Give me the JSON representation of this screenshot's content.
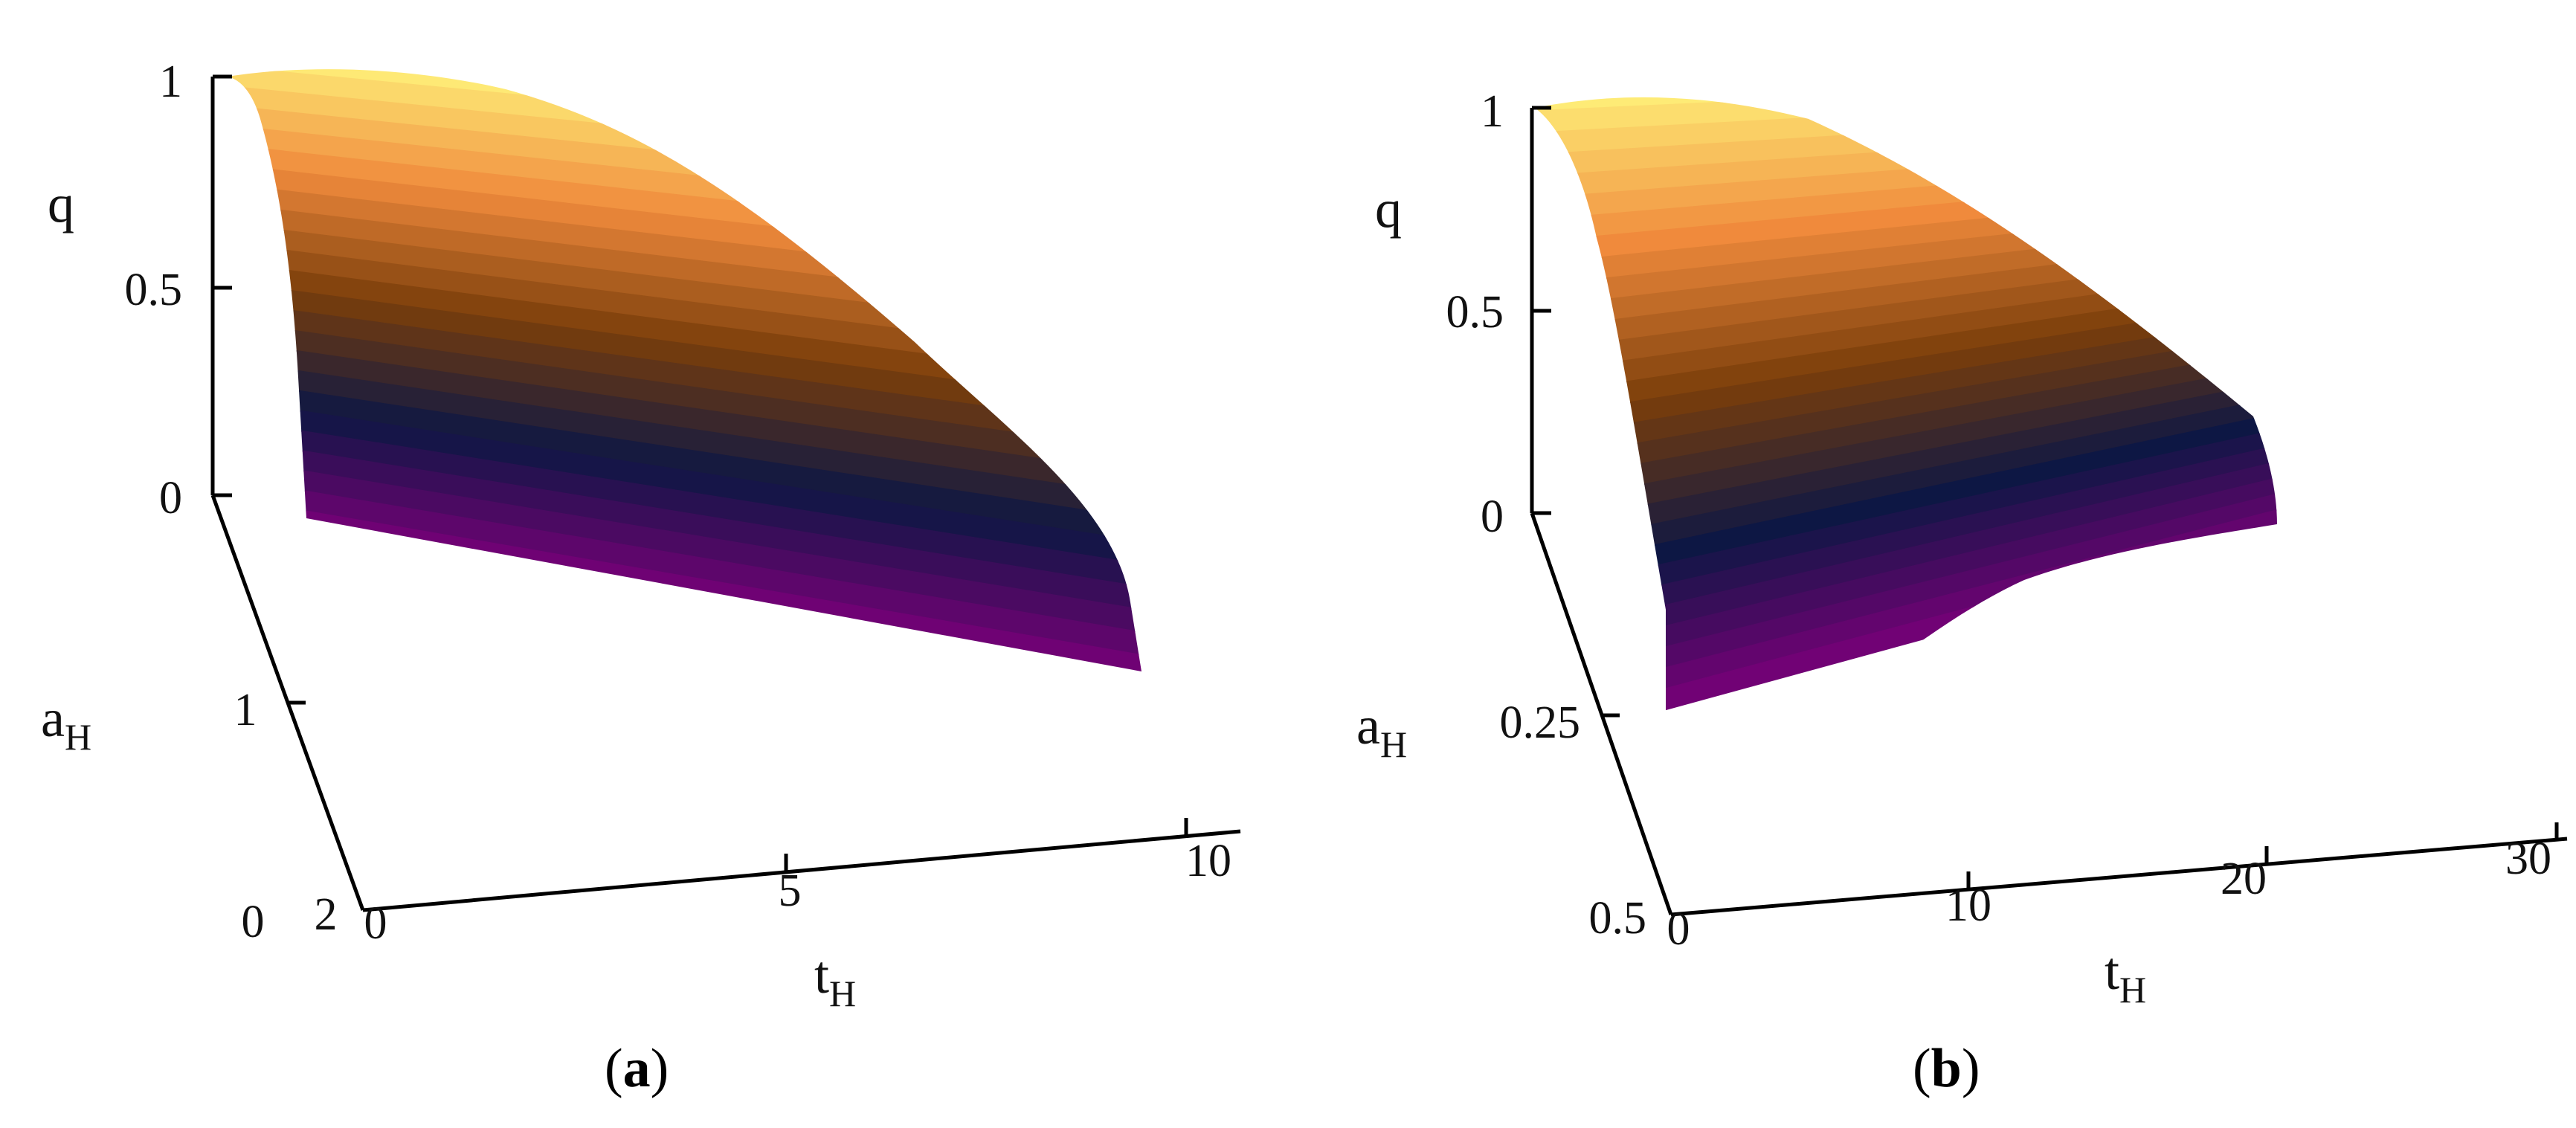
{
  "chart_data": [
    {
      "type": "surface",
      "panel_label": "a",
      "z_label": "q",
      "y_label_main": "a",
      "y_label_sub": "H",
      "x_label_main": "t",
      "x_label_sub": "H",
      "z_ticks": [
        "1",
        "0.5",
        "0"
      ],
      "y_ticks": [
        "0",
        "1",
        "2"
      ],
      "x_ticks": [
        "0",
        "5",
        "10"
      ],
      "zlim": [
        0,
        1
      ],
      "ylim": [
        0,
        2
      ],
      "xlim": [
        0,
        10
      ],
      "colormap": [
        "#780078",
        "#0d1744",
        "#7a3e0a",
        "#f08a3c",
        "#fff27a"
      ],
      "bands": 24
    },
    {
      "type": "surface",
      "panel_label": "b",
      "z_label": "q",
      "y_label_main": "a",
      "y_label_sub": "H",
      "x_label_main": "t",
      "x_label_sub": "H",
      "z_ticks": [
        "1",
        "0.5",
        "0"
      ],
      "y_ticks": [
        "0.25",
        "0.5"
      ],
      "x_ticks": [
        "0",
        "10",
        "20",
        "30"
      ],
      "zlim": [
        0,
        1
      ],
      "ylim": [
        0,
        0.5
      ],
      "xlim": [
        0,
        30
      ],
      "colormap": [
        "#780078",
        "#0d1744",
        "#7a3e0a",
        "#f08a3c",
        "#fff27a"
      ],
      "bands": 30
    }
  ]
}
